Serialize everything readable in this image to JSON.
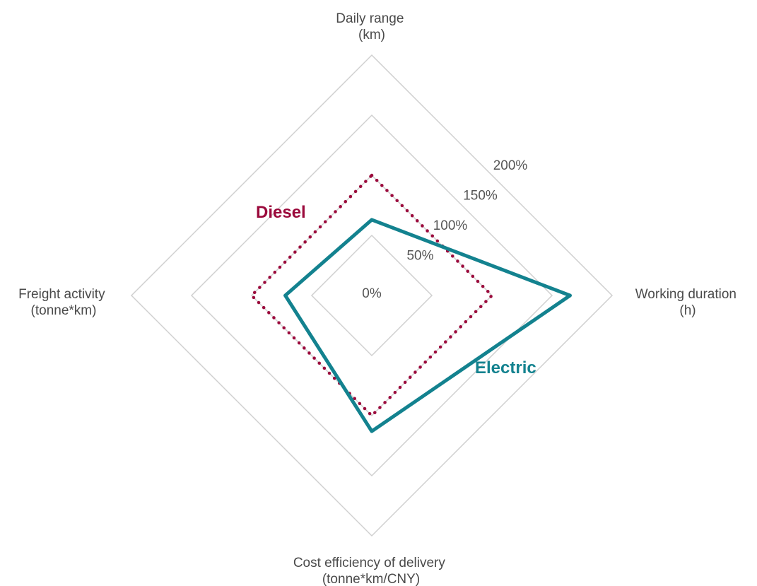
{
  "chart_data": {
    "type": "radar",
    "axes": [
      {
        "label_lines": [
          "Daily range",
          "(km)"
        ]
      },
      {
        "label_lines": [
          "Working duration",
          "(h)"
        ]
      },
      {
        "label_lines": [
          "Cost efficiency of delivery",
          "(tonne*km/CNY)"
        ]
      },
      {
        "label_lines": [
          "Freight activity",
          "(tonne*km)"
        ]
      }
    ],
    "range": [
      0,
      200
    ],
    "tick_values": [
      0,
      50,
      100,
      150,
      200
    ],
    "tick_labels": [
      "0%",
      "50%",
      "100%",
      "150%",
      "200%"
    ],
    "series": [
      {
        "name": "Diesel",
        "values": [
          100,
          100,
          100,
          100
        ],
        "color": "#9b0a3c",
        "style": "dotted"
      },
      {
        "name": "Electric",
        "values": [
          63,
          165,
          113,
          72
        ],
        "color": "#13828f",
        "style": "solid"
      }
    ],
    "grid": true
  }
}
